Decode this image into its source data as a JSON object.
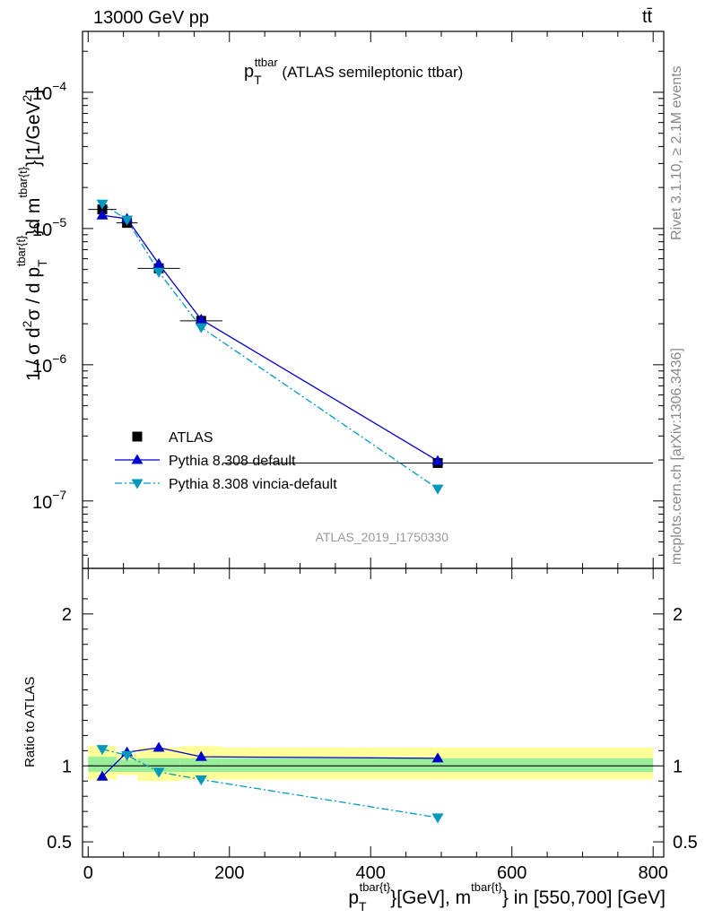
{
  "header": {
    "left": "13000 GeV pp",
    "right": "tt̄"
  },
  "side_labels": {
    "rivet": "Rivet 3.1.10, ≥ 2.1M events",
    "mcplots": "mcplots.cern.ch [arXiv:1306.3436]"
  },
  "plot_title": {
    "main": "p",
    "sub": "T",
    "sup": "ttbar",
    "rest": " (ATLAS semileptonic ttbar)"
  },
  "watermark": "ATLAS_2019_I1750330",
  "y_label_main": "1 / σ d²σ / d p_T^{tbar{t}}d m^{tbar{t}}[1/GeV²]",
  "y_label_ratio": "Ratio to ATLAS",
  "x_label": "p_T^{tbar{t}}[GeV], m^{tbar{t}} in [550,700] [GeV]",
  "legend": [
    {
      "label": "ATLAS",
      "color": "#000000",
      "marker": "square",
      "line": "none"
    },
    {
      "label": "Pythia 8.308 default",
      "color": "#0000cc",
      "marker": "triangle-up",
      "line": "solid"
    },
    {
      "label": "Pythia 8.308 vincia-default",
      "color": "#0099bb",
      "marker": "triangle-down",
      "line": "dashdot"
    }
  ],
  "colors": {
    "band_inner": "#99ee99",
    "band_outer": "#ffff99",
    "pythia_default": "#0000cc",
    "vincia": "#0099bb",
    "data": "#000000"
  },
  "chart_data": {
    "type": "line",
    "x_ticks": [
      0,
      200,
      400,
      600,
      800
    ],
    "x_tick_labels": [
      "0",
      "200",
      "400",
      "600",
      "800"
    ],
    "xlim": [
      -8,
      815
    ],
    "main": {
      "yscale": "log",
      "ylim": [
        3.2e-08,
        0.00028
      ],
      "y_tick_labels": [
        {
          "value": 1e-07,
          "base": "10",
          "exp": "−7"
        },
        {
          "value": 1e-06,
          "base": "10",
          "exp": "−6"
        },
        {
          "value": 1e-05,
          "base": "10",
          "exp": "−5"
        },
        {
          "value": 0.0001,
          "base": "10",
          "exp": "−4"
        }
      ],
      "series": [
        {
          "name": "ATLAS",
          "x": [
            20,
            55,
            100,
            160,
            495
          ],
          "y": [
            1.38e-05,
            1.1e-05,
            5.1e-06,
            2.1e-06,
            1.9e-07
          ],
          "xerr": [
            [
              0,
              40
            ],
            [
              40,
              70
            ],
            [
              70,
              130
            ],
            [
              130,
              190
            ],
            [
              190,
              800
            ]
          ]
        },
        {
          "name": "Pythia 8.308 default",
          "x": [
            20,
            55,
            100,
            160,
            495
          ],
          "y": [
            1.25e-05,
            1.18e-05,
            5.5e-06,
            2.15e-06,
            1.97e-07
          ]
        },
        {
          "name": "Pythia 8.308 vincia-default",
          "x": [
            20,
            55,
            100,
            160,
            495
          ],
          "y": [
            1.52e-05,
            1.16e-05,
            4.8e-06,
            1.88e-06,
            1.23e-07
          ]
        }
      ]
    },
    "ratio": {
      "ylim": [
        0.4,
        2.3
      ],
      "y_ticks": [
        0.5,
        1,
        2
      ],
      "y_tick_labels": [
        "0.5",
        "1",
        "2"
      ],
      "band": {
        "bins": [
          [
            0,
            40
          ],
          [
            40,
            70
          ],
          [
            70,
            130
          ],
          [
            130,
            190
          ],
          [
            190,
            800
          ]
        ],
        "inner": [
          [
            0.96,
            1.06
          ],
          [
            0.96,
            1.04
          ],
          [
            0.96,
            1.05
          ],
          [
            0.96,
            1.05
          ],
          [
            0.96,
            1.05
          ]
        ],
        "outer": [
          [
            0.91,
            1.13
          ],
          [
            0.94,
            1.08
          ],
          [
            0.9,
            1.12
          ],
          [
            0.91,
            1.13
          ],
          [
            0.91,
            1.12
          ]
        ]
      },
      "series": [
        {
          "name": "Pythia 8.308 default",
          "x": [
            20,
            55,
            100,
            160,
            495
          ],
          "y": [
            0.93,
            1.09,
            1.12,
            1.06,
            1.05
          ]
        },
        {
          "name": "Pythia 8.308 vincia-default",
          "x": [
            20,
            55,
            100,
            160,
            495
          ],
          "y": [
            1.11,
            1.07,
            0.96,
            0.91,
            0.66
          ]
        }
      ]
    }
  }
}
